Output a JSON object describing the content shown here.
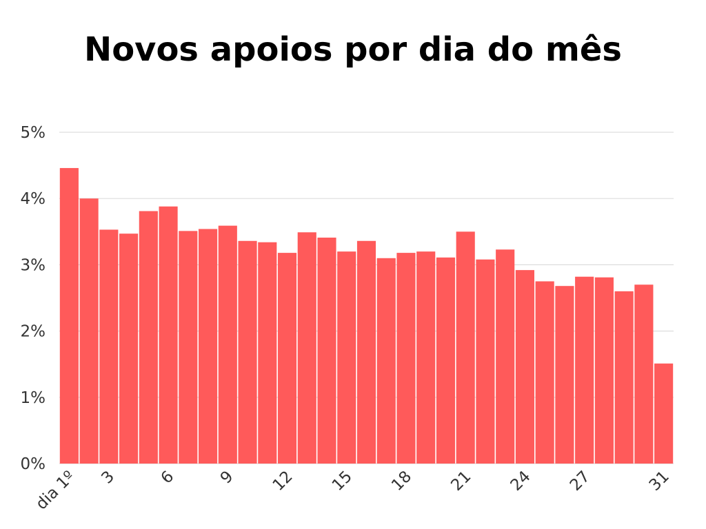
{
  "chart_data": {
    "type": "bar",
    "title": "Novos apoios por dia do mês",
    "xlabel": "",
    "ylabel": "",
    "categories": [
      "1",
      "2",
      "3",
      "4",
      "5",
      "6",
      "7",
      "8",
      "9",
      "10",
      "11",
      "12",
      "13",
      "14",
      "15",
      "16",
      "17",
      "18",
      "19",
      "20",
      "21",
      "22",
      "23",
      "24",
      "25",
      "26",
      "27",
      "28",
      "29",
      "30",
      "31"
    ],
    "x_tick_labels": [
      {
        "index": 0,
        "label": "dia 1º"
      },
      {
        "index": 2,
        "label": "3"
      },
      {
        "index": 5,
        "label": "6"
      },
      {
        "index": 8,
        "label": "9"
      },
      {
        "index": 11,
        "label": "12"
      },
      {
        "index": 14,
        "label": "15"
      },
      {
        "index": 17,
        "label": "18"
      },
      {
        "index": 20,
        "label": "21"
      },
      {
        "index": 23,
        "label": "24"
      },
      {
        "index": 26,
        "label": "27"
      },
      {
        "index": 30,
        "label": "31"
      }
    ],
    "values": [
      4.46,
      4.0,
      3.53,
      3.47,
      3.81,
      3.88,
      3.51,
      3.54,
      3.59,
      3.36,
      3.34,
      3.18,
      3.49,
      3.41,
      3.2,
      3.36,
      3.1,
      3.18,
      3.2,
      3.11,
      3.5,
      3.08,
      3.23,
      2.92,
      2.75,
      2.68,
      2.82,
      2.81,
      2.6,
      2.7,
      1.51
    ],
    "y_ticks": [
      0,
      1,
      2,
      3,
      4,
      5
    ],
    "y_tick_labels": [
      "0%",
      "1%",
      "2%",
      "3%",
      "4%",
      "5%"
    ],
    "ylim": [
      0,
      5
    ],
    "grid": true,
    "legend": "none",
    "bar_color": "#FF5A5A",
    "grid_color": "#DDDDDD"
  }
}
